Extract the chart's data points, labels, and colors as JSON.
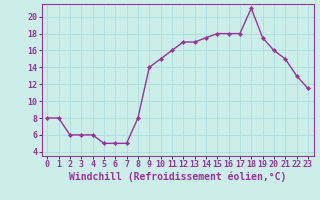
{
  "x": [
    0,
    1,
    2,
    3,
    4,
    5,
    6,
    7,
    8,
    9,
    10,
    11,
    12,
    13,
    14,
    15,
    16,
    17,
    18,
    19,
    20,
    21,
    22,
    23
  ],
  "y": [
    8.0,
    8.0,
    6.0,
    6.0,
    6.0,
    5.0,
    5.0,
    5.0,
    8.0,
    14.0,
    15.0,
    16.0,
    17.0,
    17.0,
    17.5,
    18.0,
    18.0,
    18.0,
    21.0,
    17.5,
    16.0,
    15.0,
    13.0,
    11.5
  ],
  "line_color": "#993399",
  "marker": "D",
  "marker_size": 2.2,
  "line_width": 1.0,
  "xlabel": "Windchill (Refroidissement éolien,°C)",
  "xlabel_fontsize": 7.0,
  "xlim": [
    -0.5,
    23.5
  ],
  "ylim": [
    3.5,
    21.5
  ],
  "yticks": [
    4,
    6,
    8,
    10,
    12,
    14,
    16,
    18,
    20
  ],
  "xticks": [
    0,
    1,
    2,
    3,
    4,
    5,
    6,
    7,
    8,
    9,
    10,
    11,
    12,
    13,
    14,
    15,
    16,
    17,
    18,
    19,
    20,
    21,
    22,
    23
  ],
  "background_color": "#cceee8",
  "grid_color": "#aadddd",
  "tick_fontsize": 6.0,
  "fig_bg": "#cceee8"
}
